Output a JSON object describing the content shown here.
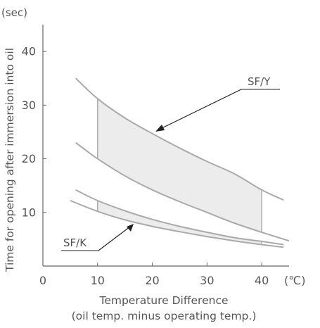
{
  "chart_data": {
    "type": "line",
    "ylabel": "Time for opening after immersion into oil",
    "y_unit": "(sec)",
    "x_unit": "(℃)",
    "xlabel_line1": "Temperature Difference",
    "xlabel_line2": "(oil temp. minus operating temp.)",
    "xlim": [
      0,
      45
    ],
    "ylim": [
      0,
      45
    ],
    "x_ticks": [
      0,
      10,
      20,
      30,
      40
    ],
    "y_ticks": [
      10,
      20,
      30,
      40
    ],
    "x_tick_labels": [
      "0",
      "10",
      "20",
      "30",
      "40"
    ],
    "y_tick_labels": [
      "10",
      "20",
      "30",
      "40"
    ],
    "colors": {
      "axis": "#666666",
      "curve": "#aaaaaa",
      "fill": "#ececec",
      "text": "#555555",
      "arrow": "#222222"
    },
    "series": [
      {
        "name": "SF/Y",
        "band_range": [
          10,
          40
        ],
        "upper": {
          "x": [
            6,
            10,
            15,
            20,
            25,
            30,
            35,
            40,
            44
          ],
          "y": [
            35,
            31.2,
            27.6,
            24.7,
            22.0,
            19.5,
            17.2,
            14.2,
            12.3
          ]
        },
        "lower": {
          "x": [
            6,
            10,
            15,
            20,
            25,
            30,
            35,
            40,
            45
          ],
          "y": [
            23,
            20.0,
            16.8,
            14.2,
            12.0,
            10.0,
            8.0,
            6.3,
            4.7
          ]
        }
      },
      {
        "name": "SF/K",
        "band_range": [
          10,
          40
        ],
        "upper": {
          "x": [
            6,
            10,
            15,
            20,
            25,
            30,
            35,
            40,
            44
          ],
          "y": [
            14.2,
            12.2,
            10.3,
            8.7,
            7.4,
            6.3,
            5.3,
            4.6,
            4.0
          ]
        },
        "lower": {
          "x": [
            5,
            10,
            15,
            20,
            25,
            30,
            35,
            40,
            44
          ],
          "y": [
            12.2,
            10.2,
            8.6,
            7.4,
            6.4,
            5.5,
            4.7,
            4.0,
            3.5
          ]
        }
      }
    ]
  }
}
